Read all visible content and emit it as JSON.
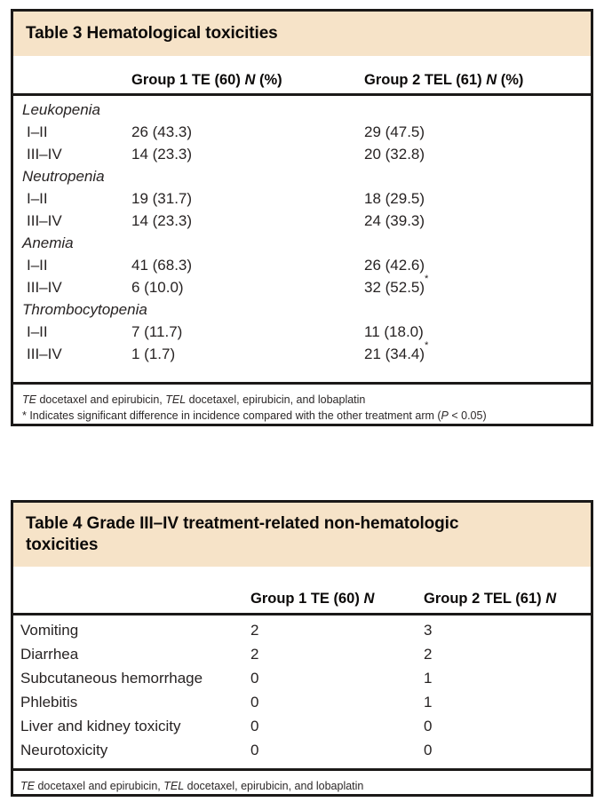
{
  "colors": {
    "title_band": "#f6e3c8",
    "border_and_rules": "#1b1918",
    "text": "#272323"
  },
  "table3": {
    "title": "Table 3 Hematological toxicities",
    "columns": {
      "col1": {
        "pre": "Group 1 TE (60) ",
        "n": "N",
        "post": " (%)"
      },
      "col2": {
        "pre": "Group 2 TEL (61) ",
        "n": "N",
        "post": " (%)"
      }
    },
    "rows": [
      {
        "label": "Leukopenia"
      },
      {
        "label": "I–II",
        "v1": "26 (43.3)",
        "v2": "29 (47.5)"
      },
      {
        "label": "III–IV",
        "v1": "14 (23.3)",
        "v2": "20 (32.8)"
      },
      {
        "label": "Neutropenia"
      },
      {
        "label": "I–II",
        "v1": "19 (31.7)",
        "v2": "18 (29.5)"
      },
      {
        "label": "III–IV",
        "v1": "14 (23.3)",
        "v2": "24 (39.3)"
      },
      {
        "label": "Anemia"
      },
      {
        "label": "I–II",
        "v1": "41 (68.3)",
        "v2": "26 (42.6)"
      },
      {
        "label": "III–IV",
        "v1": "6 (10.0)",
        "v2": "32 (52.5)",
        "v2star": "*"
      },
      {
        "label": "Thrombocytopenia"
      },
      {
        "label": "I–II",
        "v1": "7 (11.7)",
        "v2": "11 (18.0)"
      },
      {
        "label": "III–IV",
        "v1": "1 (1.7)",
        "v2": "21 (34.4)",
        "v2star": "*"
      }
    ],
    "footnote_abbrev": {
      "te": "TE",
      "te_text": " docetaxel and epirubicin, ",
      "tel": "TEL",
      "tel_text": " docetaxel, epirubicin, and lobaplatin"
    },
    "footnote_significance": {
      "pre": "* Indicates significant difference in incidence compared with the other treatment arm (",
      "p": "P",
      "post": " < 0.05)"
    }
  },
  "table4": {
    "title": "Table 4 Grade III–IV treatment-related non-hematologic toxicities",
    "columns": {
      "col1": {
        "pre": "Group 1 TE (60) ",
        "n": "N"
      },
      "col2": {
        "pre": "Group 2 TEL (61) ",
        "n": "N"
      }
    },
    "rows": [
      {
        "label": "Vomiting",
        "v1": "2",
        "v2": "3"
      },
      {
        "label": "Diarrhea",
        "v1": "2",
        "v2": "2"
      },
      {
        "label": "Subcutaneous hemorrhage",
        "v1": "0",
        "v2": "1"
      },
      {
        "label": "Phlebitis",
        "v1": "0",
        "v2": "1"
      },
      {
        "label": "Liver and kidney toxicity",
        "v1": "0",
        "v2": "0"
      },
      {
        "label": "Neurotoxicity",
        "v1": "0",
        "v2": "0"
      }
    ],
    "footnote_abbrev": {
      "te": "TE",
      "te_text": " docetaxel and epirubicin, ",
      "tel": "TEL",
      "tel_text": " docetaxel, epirubicin, and lobaplatin"
    }
  }
}
